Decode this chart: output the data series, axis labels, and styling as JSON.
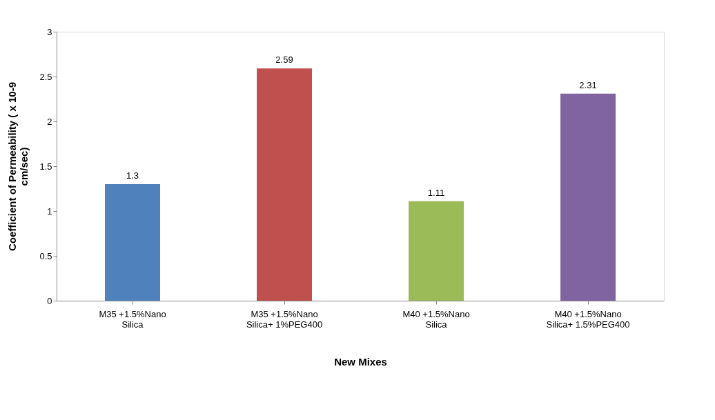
{
  "chart_data": {
    "type": "bar",
    "xlabel": "New Mixes",
    "ylabel": "Coefficient of Permeability ( x 10-9 cm/sec)",
    "categories": [
      "M35 +1.5%Nano Silica",
      "M35 +1.5%Nano Silica+ 1%PEG400",
      "M40 +1.5%Nano Silica",
      "M40 +1.5%Nano Silica+ 1.5%PEG400"
    ],
    "values": [
      1.3,
      2.59,
      1.11,
      2.31
    ],
    "colors": [
      "#4f81bd",
      "#c0504d",
      "#9bbb59",
      "#8064a2"
    ],
    "ylim": [
      0,
      3
    ],
    "yticks": [
      0,
      0.5,
      1,
      1.5,
      2,
      2.5,
      3
    ],
    "grid": false,
    "data_labels": true
  }
}
